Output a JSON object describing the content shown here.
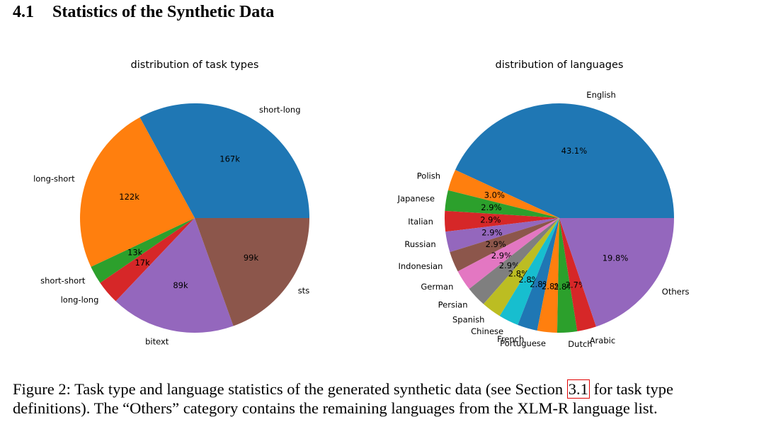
{
  "heading": {
    "number": "4.1",
    "title": "Statistics of the Synthetic Data"
  },
  "chart_data": [
    {
      "type": "pie",
      "title": "distribution of task types",
      "slices": [
        {
          "label": "short-long",
          "value_label": "167k",
          "value": 167,
          "color": "#1f77b4"
        },
        {
          "label": "long-short",
          "value_label": "122k",
          "value": 122,
          "color": "#ff7f0e"
        },
        {
          "label": "short-short",
          "value_label": "13k",
          "value": 13,
          "color": "#2ca02c"
        },
        {
          "label": "long-long",
          "value_label": "17k",
          "value": 17,
          "color": "#d62728"
        },
        {
          "label": "bitext",
          "value_label": "89k",
          "value": 89,
          "color": "#9467bd"
        },
        {
          "label": "sts",
          "value_label": "99k",
          "value": 99,
          "color": "#8c564b"
        }
      ]
    },
    {
      "type": "pie",
      "title": "distribution of languages",
      "slices": [
        {
          "label": "English",
          "value_label": "43.1%",
          "value": 43.1,
          "color": "#1f77b4"
        },
        {
          "label": "Polish",
          "value_label": "3.0%",
          "value": 3.0,
          "color": "#ff7f0e"
        },
        {
          "label": "Japanese",
          "value_label": "2.9%",
          "value": 2.9,
          "color": "#2ca02c"
        },
        {
          "label": "Italian",
          "value_label": "2.9%",
          "value": 2.9,
          "color": "#d62728"
        },
        {
          "label": "Russian",
          "value_label": "2.9%",
          "value": 2.9,
          "color": "#9467bd"
        },
        {
          "label": "Indonesian",
          "value_label": "2.9%",
          "value": 2.9,
          "color": "#8c564b"
        },
        {
          "label": "German",
          "value_label": "2.9%",
          "value": 2.9,
          "color": "#e377c2"
        },
        {
          "label": "Persian",
          "value_label": "2.9%",
          "value": 2.9,
          "color": "#7f7f7f"
        },
        {
          "label": "Spanish",
          "value_label": "2.8%",
          "value": 2.8,
          "color": "#bcbd22"
        },
        {
          "label": "Chinese",
          "value_label": "2.8%",
          "value": 2.8,
          "color": "#17becf"
        },
        {
          "label": "French",
          "value_label": "2.8%",
          "value": 2.8,
          "color": "#1f77b4"
        },
        {
          "label": "Portuguese",
          "value_label": "2.8%",
          "value": 2.8,
          "color": "#ff7f0e"
        },
        {
          "label": "Dutch",
          "value_label": "2.8%",
          "value": 2.8,
          "color": "#2ca02c"
        },
        {
          "label": "Arabic",
          "value_label": "2.7%",
          "value": 2.7,
          "color": "#d62728"
        },
        {
          "label": "Others",
          "value_label": "19.8%",
          "value": 19.8,
          "color": "#9467bd"
        }
      ]
    }
  ],
  "caption": {
    "prefix": "Figure 2: Task type and language statistics of the generated synthetic data (see Section ",
    "ref": "3.1",
    "suffix": " for task type definitions). The “Others” category contains the remaining languages from the XLM-R language list."
  }
}
